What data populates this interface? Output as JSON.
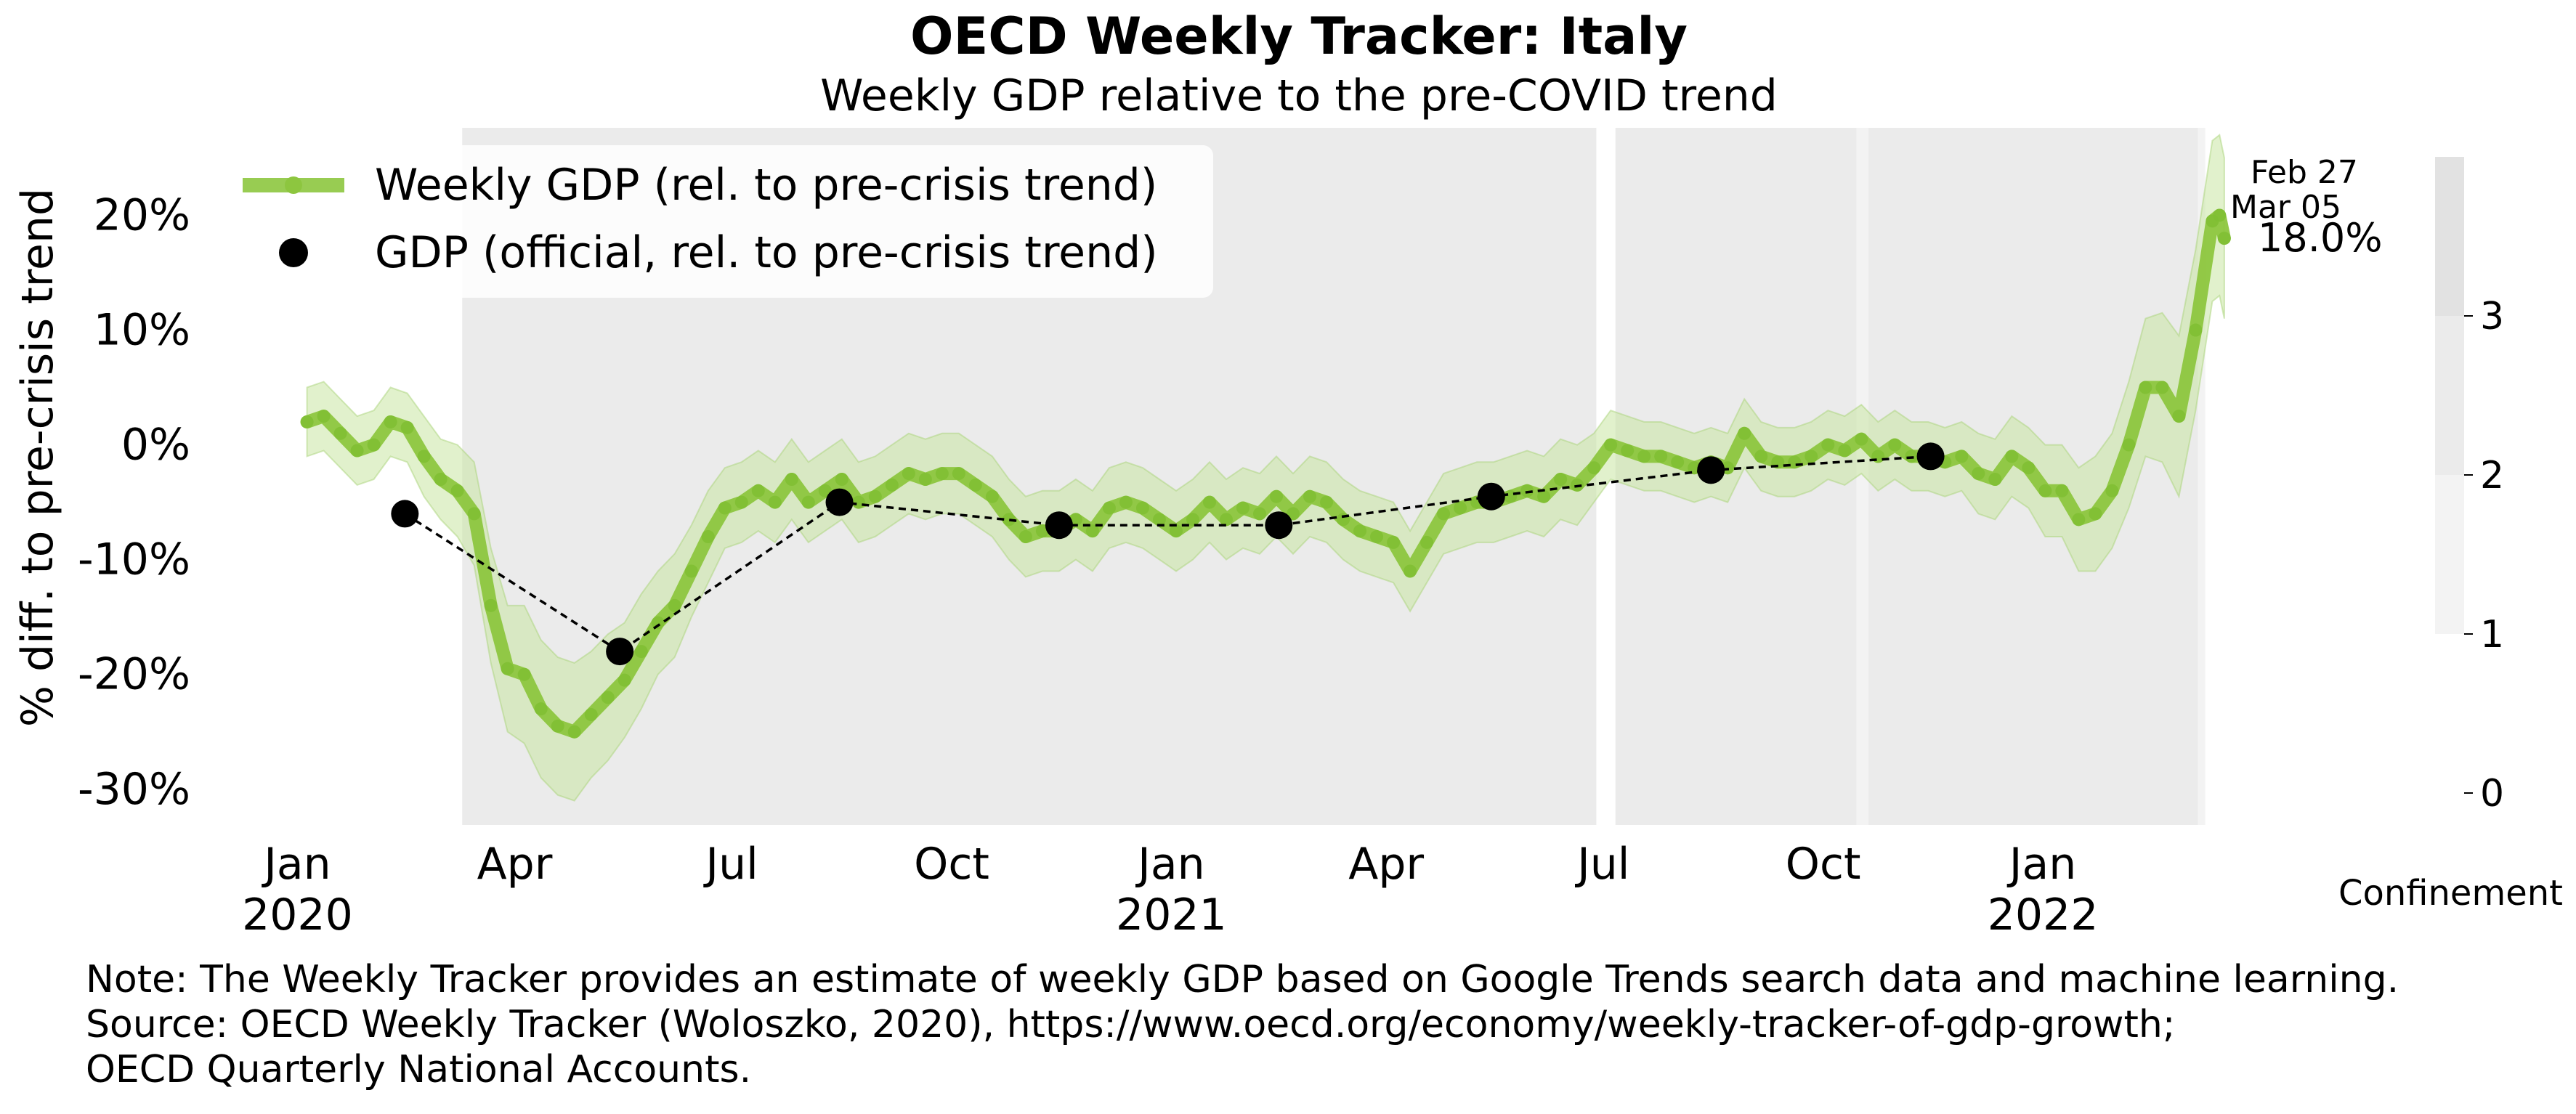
{
  "header": {
    "title": "OECD Weekly Tracker: Italy",
    "subtitle": "Weekly GDP relative to the pre-COVID trend"
  },
  "chart_data": {
    "type": "line",
    "title": "OECD Weekly Tracker: Italy",
    "subtitle": "Weekly GDP relative to the pre-COVID trend",
    "ylabel": "% diff. to pre-crisis trend",
    "xlabel": "",
    "ylim": [
      -34,
      28
    ],
    "xlim": [
      "2019-12-20",
      "2022-03-22"
    ],
    "yticks": [
      {
        "value": 20,
        "label": "20%"
      },
      {
        "value": 10,
        "label": "10%"
      },
      {
        "value": 0,
        "label": "0%"
      },
      {
        "value": -10,
        "label": "-10%"
      },
      {
        "value": -20,
        "label": "-20%"
      },
      {
        "value": -30,
        "label": "-30%"
      }
    ],
    "xticks": [
      {
        "date": "2020-01-01",
        "label": "Jan",
        "year": "2020"
      },
      {
        "date": "2020-04-01",
        "label": "Apr",
        "year": ""
      },
      {
        "date": "2020-07-01",
        "label": "Jul",
        "year": ""
      },
      {
        "date": "2020-10-01",
        "label": "Oct",
        "year": ""
      },
      {
        "date": "2021-01-01",
        "label": "Jan",
        "year": "2021"
      },
      {
        "date": "2021-04-01",
        "label": "Apr",
        "year": ""
      },
      {
        "date": "2021-07-01",
        "label": "Jul",
        "year": ""
      },
      {
        "date": "2021-10-01",
        "label": "Oct",
        "year": ""
      },
      {
        "date": "2022-01-01",
        "label": "Jan",
        "year": "2022"
      }
    ],
    "legend": {
      "placement": "top-left",
      "entries": [
        "Weekly GDP (rel. to pre-crisis trend)",
        "GDP (official, rel. to pre-crisis trend)"
      ]
    },
    "confinement": {
      "label": "Confinement",
      "ticks": [
        "0",
        "1",
        "2",
        "3"
      ],
      "levels": [
        {
          "from": 0,
          "to": 1,
          "color": "#ffffff"
        },
        {
          "from": 1,
          "to": 2,
          "color": "#f3f3f3"
        },
        {
          "from": 2,
          "to": 3,
          "color": "#ebebeb"
        },
        {
          "from": 3,
          "to": 4,
          "color": "#e2e2e2"
        }
      ],
      "periods": [
        {
          "start": "2020-03-10",
          "end": "2021-06-28",
          "level": 2
        },
        {
          "start": "2021-06-28",
          "end": "2021-07-06",
          "level": 0
        },
        {
          "start": "2021-07-06",
          "end": "2021-10-15",
          "level": 2
        },
        {
          "start": "2021-10-15",
          "end": "2021-10-20",
          "level": 1
        },
        {
          "start": "2021-10-20",
          "end": "2022-03-07",
          "level": 2
        },
        {
          "start": "2022-03-07",
          "end": "2022-03-10",
          "level": 1
        }
      ]
    },
    "annotations": [
      {
        "label": "Feb 27"
      },
      {
        "label": "Mar 05"
      },
      {
        "label": "18.0%"
      }
    ],
    "colors": {
      "weekly_line": "#8dc63f",
      "band": "#c8e6a2",
      "official": "#000000",
      "confinement_bg": "#ebebeb"
    },
    "weekly": [
      [
        "2020-01-05",
        2
      ],
      [
        "2020-01-12",
        2.5
      ],
      [
        "2020-01-19",
        1
      ],
      [
        "2020-01-26",
        -0.5
      ],
      [
        "2020-02-02",
        0
      ],
      [
        "2020-02-09",
        2
      ],
      [
        "2020-02-16",
        1.5
      ],
      [
        "2020-02-23",
        -1
      ],
      [
        "2020-03-01",
        -3
      ],
      [
        "2020-03-08",
        -4
      ],
      [
        "2020-03-15",
        -6
      ],
      [
        "2020-03-22",
        -14
      ],
      [
        "2020-03-29",
        -19.5
      ],
      [
        "2020-04-05",
        -20
      ],
      [
        "2020-04-12",
        -23
      ],
      [
        "2020-04-19",
        -24.5
      ],
      [
        "2020-04-26",
        -25
      ],
      [
        "2020-05-03",
        -23.5
      ],
      [
        "2020-05-10",
        -22
      ],
      [
        "2020-05-17",
        -20.5
      ],
      [
        "2020-05-24",
        -18
      ],
      [
        "2020-05-31",
        -15.5
      ],
      [
        "2020-06-07",
        -14
      ],
      [
        "2020-06-14",
        -11
      ],
      [
        "2020-06-21",
        -8
      ],
      [
        "2020-06-28",
        -5.5
      ],
      [
        "2020-07-05",
        -5
      ],
      [
        "2020-07-12",
        -4
      ],
      [
        "2020-07-19",
        -5
      ],
      [
        "2020-07-26",
        -3
      ],
      [
        "2020-08-02",
        -5
      ],
      [
        "2020-08-09",
        -4
      ],
      [
        "2020-08-16",
        -3
      ],
      [
        "2020-08-23",
        -5
      ],
      [
        "2020-08-30",
        -4.5
      ],
      [
        "2020-09-06",
        -3.5
      ],
      [
        "2020-09-13",
        -2.5
      ],
      [
        "2020-09-20",
        -3
      ],
      [
        "2020-09-27",
        -2.5
      ],
      [
        "2020-10-04",
        -2.5
      ],
      [
        "2020-10-11",
        -3.5
      ],
      [
        "2020-10-18",
        -4.5
      ],
      [
        "2020-10-25",
        -6.5
      ],
      [
        "2020-11-01",
        -8
      ],
      [
        "2020-11-08",
        -7.5
      ],
      [
        "2020-11-15",
        -7.5
      ],
      [
        "2020-11-22",
        -6.5
      ],
      [
        "2020-11-29",
        -7.5
      ],
      [
        "2020-12-06",
        -5.5
      ],
      [
        "2020-12-13",
        -5
      ],
      [
        "2020-12-20",
        -5.5
      ],
      [
        "2020-12-27",
        -6.5
      ],
      [
        "2021-01-03",
        -7.5
      ],
      [
        "2021-01-10",
        -6.5
      ],
      [
        "2021-01-17",
        -5
      ],
      [
        "2021-01-24",
        -6.5
      ],
      [
        "2021-01-31",
        -5.5
      ],
      [
        "2021-02-07",
        -6
      ],
      [
        "2021-02-14",
        -4.5
      ],
      [
        "2021-02-21",
        -6
      ],
      [
        "2021-02-28",
        -4.5
      ],
      [
        "2021-03-07",
        -5
      ],
      [
        "2021-03-14",
        -6.5
      ],
      [
        "2021-03-21",
        -7.5
      ],
      [
        "2021-03-28",
        -8
      ],
      [
        "2021-04-04",
        -8.5
      ],
      [
        "2021-04-11",
        -11
      ],
      [
        "2021-04-18",
        -8.5
      ],
      [
        "2021-04-25",
        -6
      ],
      [
        "2021-05-02",
        -5.5
      ],
      [
        "2021-05-09",
        -5
      ],
      [
        "2021-05-16",
        -5
      ],
      [
        "2021-05-23",
        -4.5
      ],
      [
        "2021-05-30",
        -4
      ],
      [
        "2021-06-06",
        -4.5
      ],
      [
        "2021-06-13",
        -3
      ],
      [
        "2021-06-20",
        -3.5
      ],
      [
        "2021-06-27",
        -2
      ],
      [
        "2021-07-04",
        0
      ],
      [
        "2021-07-11",
        -0.5
      ],
      [
        "2021-07-18",
        -1
      ],
      [
        "2021-07-25",
        -1
      ],
      [
        "2021-08-01",
        -1.5
      ],
      [
        "2021-08-08",
        -2
      ],
      [
        "2021-08-15",
        -1.5
      ],
      [
        "2021-08-22",
        -2
      ],
      [
        "2021-08-29",
        1
      ],
      [
        "2021-09-05",
        -1
      ],
      [
        "2021-09-12",
        -1.5
      ],
      [
        "2021-09-19",
        -1.5
      ],
      [
        "2021-09-26",
        -1
      ],
      [
        "2021-10-03",
        0
      ],
      [
        "2021-10-10",
        -0.5
      ],
      [
        "2021-10-17",
        0.5
      ],
      [
        "2021-10-24",
        -1
      ],
      [
        "2021-10-31",
        0
      ],
      [
        "2021-11-07",
        -1
      ],
      [
        "2021-11-14",
        -1
      ],
      [
        "2021-11-21",
        -1.5
      ],
      [
        "2021-11-28",
        -1
      ],
      [
        "2021-12-05",
        -2.5
      ],
      [
        "2021-12-12",
        -3
      ],
      [
        "2021-12-19",
        -1
      ],
      [
        "2021-12-26",
        -2
      ],
      [
        "2022-01-02",
        -4
      ],
      [
        "2022-01-09",
        -4
      ],
      [
        "2022-01-16",
        -6.5
      ],
      [
        "2022-01-23",
        -6
      ],
      [
        "2022-01-30",
        -4
      ],
      [
        "2022-02-06",
        0
      ],
      [
        "2022-02-13",
        5
      ],
      [
        "2022-02-20",
        5
      ],
      [
        "2022-02-27",
        2.5
      ],
      [
        "2022-03-06",
        10
      ],
      [
        "2022-03-13",
        19.5
      ],
      [
        "2022-03-16",
        20
      ],
      [
        "2022-03-18",
        18
      ]
    ],
    "band_halfwidth": [
      3,
      3,
      3,
      3,
      3,
      3,
      3,
      3.5,
      3.5,
      4,
      4.5,
      5,
      5.5,
      6,
      6,
      6,
      6,
      5.5,
      5.5,
      5,
      5,
      4.5,
      4.5,
      4,
      4,
      3.5,
      3.5,
      3.5,
      3.5,
      3.5,
      3.5,
      3.5,
      3.5,
      3.5,
      3.5,
      3.5,
      3.5,
      3.5,
      3.5,
      3.5,
      3.5,
      3.5,
      3.5,
      3.5,
      3.5,
      3.5,
      3.5,
      3.5,
      3.5,
      3.5,
      3.5,
      3.5,
      3.5,
      3.5,
      3.5,
      3.5,
      3.5,
      3.5,
      3.5,
      3.5,
      3.5,
      3.5,
      3.5,
      3.5,
      3.5,
      3.5,
      3.5,
      3.5,
      3.5,
      3.5,
      3.5,
      3.5,
      3.5,
      3.5,
      3.5,
      3.5,
      3.5,
      3,
      3,
      3,
      3,
      3,
      3,
      3,
      3,
      3,
      3,
      3,
      3,
      3,
      3,
      3,
      3,
      3,
      3,
      3,
      3,
      3,
      3,
      3,
      3.5,
      3.5,
      3.5,
      3.5,
      4,
      4,
      4.5,
      5,
      5,
      5.5,
      6,
      6.5,
      7,
      7,
      7
    ],
    "official": [
      [
        "2020-02-15",
        -6
      ],
      [
        "2020-05-15",
        -18
      ],
      [
        "2020-08-15",
        -5
      ],
      [
        "2020-11-15",
        -7
      ],
      [
        "2021-02-15",
        -7
      ],
      [
        "2021-05-15",
        -4.5
      ],
      [
        "2021-08-15",
        -2.2
      ],
      [
        "2021-11-15",
        -1
      ]
    ]
  },
  "footer": {
    "note_line1": "Note: The Weekly Tracker provides an estimate of weekly GDP based on Google Trends search data and machine learning.",
    "note_line2": "Source: OECD Weekly Tracker (Woloszko, 2020), https://www.oecd.org/economy/weekly-tracker-of-gdp-growth;",
    "note_line3": "OECD Quarterly National Accounts."
  }
}
